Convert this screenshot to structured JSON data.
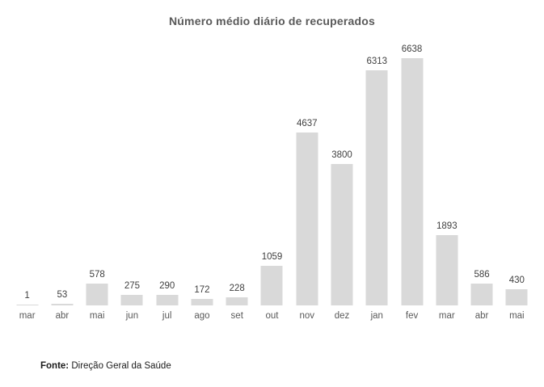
{
  "chart_data": {
    "type": "bar",
    "title": "Número médio diário de recuperados",
    "categories": [
      "mar",
      "abr",
      "mai",
      "jun",
      "jul",
      "ago",
      "set",
      "out",
      "nov",
      "dez",
      "jan",
      "fev",
      "mar",
      "abr",
      "mai"
    ],
    "values": [
      1,
      53,
      578,
      275,
      290,
      172,
      228,
      1059,
      4637,
      3800,
      6313,
      6638,
      1893,
      586,
      430
    ],
    "xlabel": "",
    "ylabel": "",
    "ylim": [
      0,
      6638
    ],
    "grid": false,
    "legend": "none",
    "data_labels": true
  },
  "footer": {
    "label": "Fonte:",
    "text": " Direção Geral da Saúde"
  },
  "colors": {
    "bar": "#d9d9d9",
    "value_label": "#404040",
    "axis_label": "#595959",
    "title": "#595959",
    "background": "#ffffff"
  }
}
